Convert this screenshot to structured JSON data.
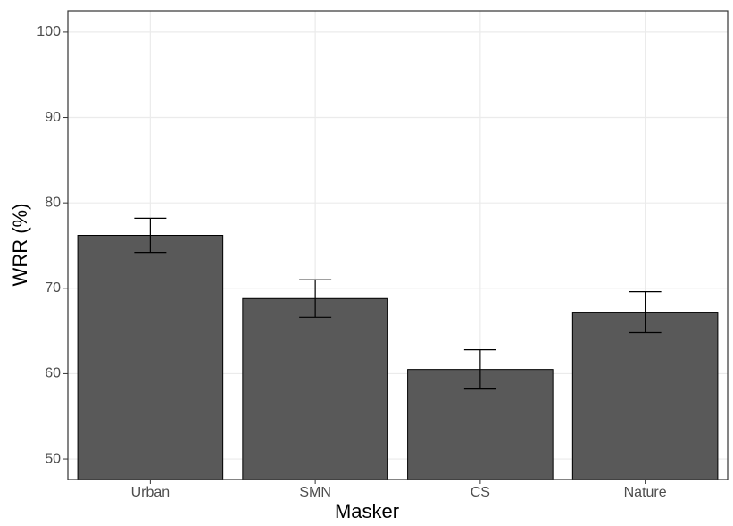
{
  "chart_data": {
    "type": "bar",
    "x_label": "Masker",
    "y_label": "WRR (%)",
    "categories": [
      "Urban",
      "SMN",
      "CS",
      "Nature"
    ],
    "values": [
      76.2,
      68.8,
      60.5,
      67.2
    ],
    "errors": [
      2.0,
      2.2,
      2.3,
      2.4
    ],
    "color": "#595959",
    "ylim": [
      47.6,
      102.5
    ],
    "yticks": [
      50,
      60,
      70,
      80,
      90,
      100
    ],
    "grid": true
  }
}
